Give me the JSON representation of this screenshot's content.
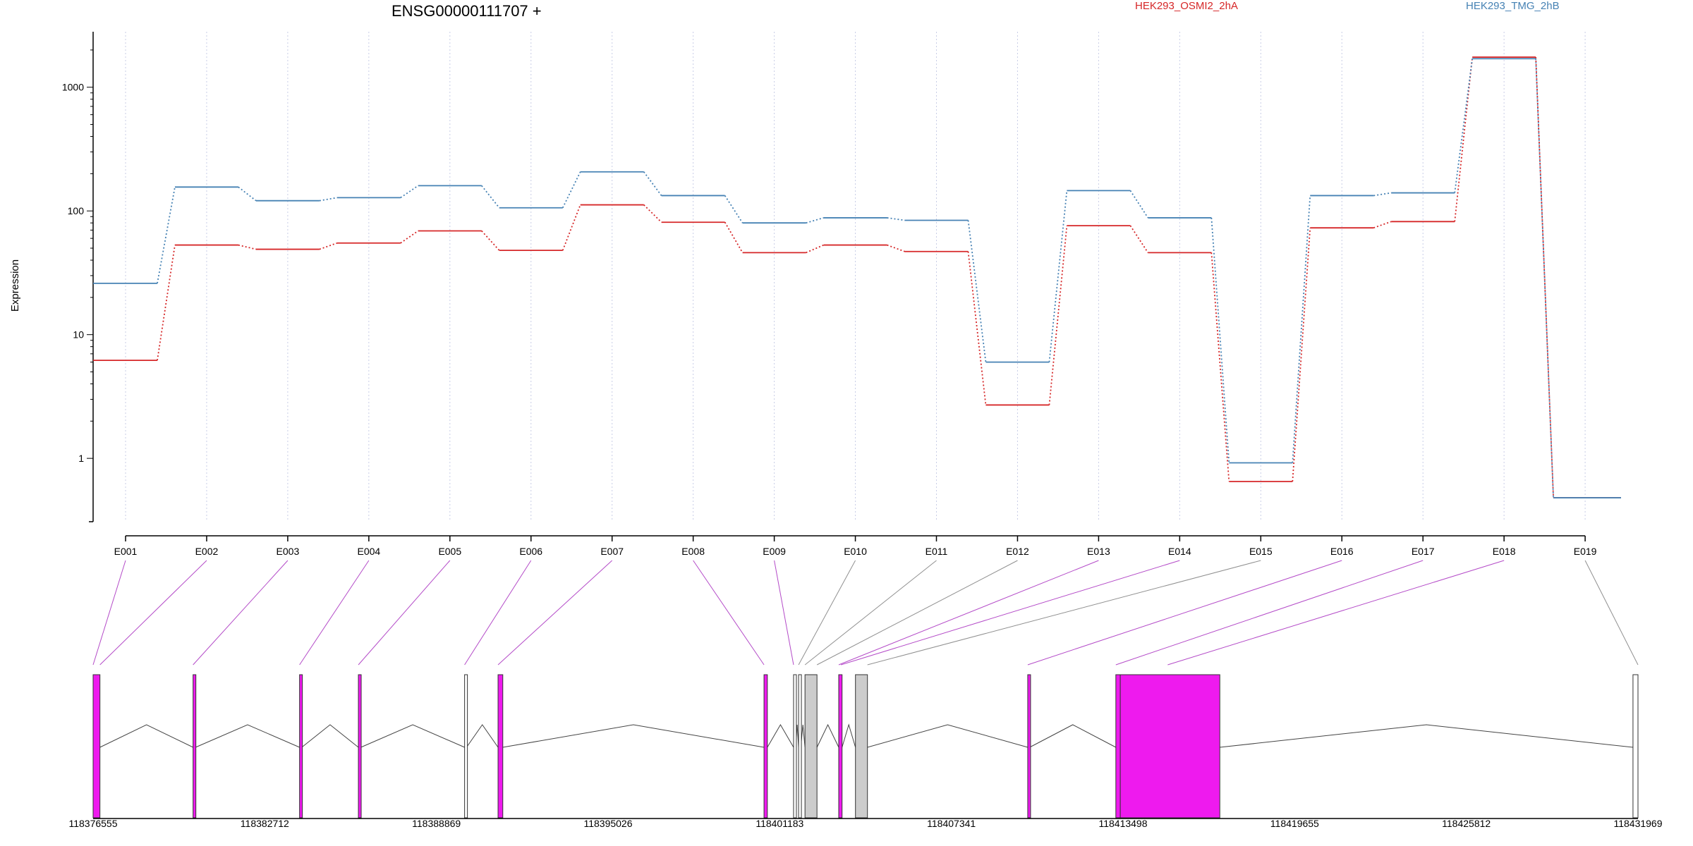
{
  "chart_data": {
    "type": "line",
    "title": "ENSG00000111707 +",
    "ylabel": "Expression",
    "xlabel": "",
    "yscale": "log",
    "ylim": [
      0.45,
      2400
    ],
    "yticks": [
      1,
      10,
      100,
      1000
    ],
    "ytick_labels": [
      "1",
      "10",
      "100",
      "1000"
    ],
    "grid": "vertical dotted at exon ticks",
    "legend_placement": "top-right",
    "categories": [
      "E001",
      "E002",
      "E003",
      "E004",
      "E005",
      "E006",
      "E007",
      "E008",
      "E009",
      "E010",
      "E011",
      "E012",
      "E013",
      "E014",
      "E015",
      "E016",
      "E017",
      "E018",
      "E019"
    ],
    "series": [
      {
        "name": "HEK293_OSMI2_2hA",
        "color": "#d62728",
        "values": [
          6.2,
          53,
          49,
          55,
          69,
          48,
          112,
          81,
          46,
          53,
          47,
          2.7,
          76,
          46,
          0.65,
          73,
          82,
          1750,
          0.48
        ]
      },
      {
        "name": "HEK293_TMG_2hB",
        "color": "#4682b4",
        "values": [
          26,
          156,
          121,
          128,
          160,
          106,
          207,
          133,
          80,
          88,
          84,
          6,
          146,
          88,
          0.92,
          133,
          140,
          1700,
          0.48
        ]
      }
    ],
    "gene_model": {
      "coordinate_labels": [
        "118376555",
        "118382712",
        "118388869",
        "118395026",
        "118401183",
        "118407341",
        "118413498",
        "118419655",
        "118425812",
        "118431969"
      ],
      "coord_range": [
        118376555,
        118431969
      ],
      "exons": [
        {
          "id": "E001",
          "start": 118376555,
          "end": 118376800,
          "kind": "tested"
        },
        {
          "id": "E002",
          "start": 118380140,
          "end": 118380230,
          "kind": "tested"
        },
        {
          "id": "E003",
          "start": 118383960,
          "end": 118384040,
          "kind": "tested"
        },
        {
          "id": "E004",
          "start": 118386070,
          "end": 118386160,
          "kind": "tested"
        },
        {
          "id": "E005",
          "start": 118389880,
          "end": 118389950,
          "kind": "other"
        },
        {
          "id": "E006",
          "start": 118391080,
          "end": 118391250,
          "kind": "tested"
        },
        {
          "id": "E007",
          "start": 118400620,
          "end": 118400740,
          "kind": "tested"
        },
        {
          "id": "E008",
          "start": 118401680,
          "end": 118401760,
          "kind": "other"
        },
        {
          "id": "E009",
          "start": 118401860,
          "end": 118401940,
          "kind": "other"
        },
        {
          "id": "E010",
          "start": 118402090,
          "end": 118402520,
          "kind": "noncounted"
        },
        {
          "id": "E011",
          "start": 118403300,
          "end": 118403420,
          "kind": "tested"
        },
        {
          "id": "E012",
          "start": 118403900,
          "end": 118404330,
          "kind": "noncounted"
        },
        {
          "id": "E013",
          "start": 118410080,
          "end": 118410150,
          "kind": "tested"
        },
        {
          "id": "E014",
          "start": 118413240,
          "end": 118413400,
          "kind": "tested"
        },
        {
          "id": "E015",
          "start": 118413400,
          "end": 118416970,
          "kind": "tested"
        },
        {
          "id": "E016",
          "start": 118431790,
          "end": 118431969,
          "kind": "unused"
        }
      ],
      "connectors": [
        {
          "label": "E001",
          "target": 118376555,
          "kind": "tested"
        },
        {
          "label": "E002",
          "target": 118376800,
          "kind": "tested"
        },
        {
          "label": "E003",
          "target": 118380140,
          "kind": "tested"
        },
        {
          "label": "E004",
          "target": 118383960,
          "kind": "tested"
        },
        {
          "label": "E005",
          "target": 118386070,
          "kind": "tested"
        },
        {
          "label": "E006",
          "target": 118389880,
          "kind": "tested"
        },
        {
          "label": "E007",
          "target": 118391080,
          "kind": "tested"
        },
        {
          "label": "E008",
          "target": 118400620,
          "kind": "tested"
        },
        {
          "label": "E009",
          "target": 118401680,
          "kind": "tested"
        },
        {
          "label": "E010",
          "target": 118401860,
          "kind": "other"
        },
        {
          "label": "E011",
          "target": 118402090,
          "kind": "other"
        },
        {
          "label": "E012",
          "target": 118402520,
          "kind": "other"
        },
        {
          "label": "E013",
          "target": 118403300,
          "kind": "tested"
        },
        {
          "label": "E014",
          "target": 118403380,
          "kind": "tested"
        },
        {
          "label": "E015",
          "target": 118404330,
          "kind": "other"
        },
        {
          "label": "E016",
          "target": 118410080,
          "kind": "tested"
        },
        {
          "label": "E017",
          "target": 118413240,
          "kind": "tested"
        },
        {
          "label": "E018",
          "target": 118415100,
          "kind": "tested"
        },
        {
          "label": "E019",
          "target": 118431969,
          "kind": "other"
        }
      ],
      "colors": {
        "tested": "#ee1aee",
        "noncounted": "#cccccc",
        "unused": "#ffffff",
        "other": "#ffffff",
        "connector_tested": "#b44bc8",
        "connector_other": "#909090"
      }
    }
  }
}
